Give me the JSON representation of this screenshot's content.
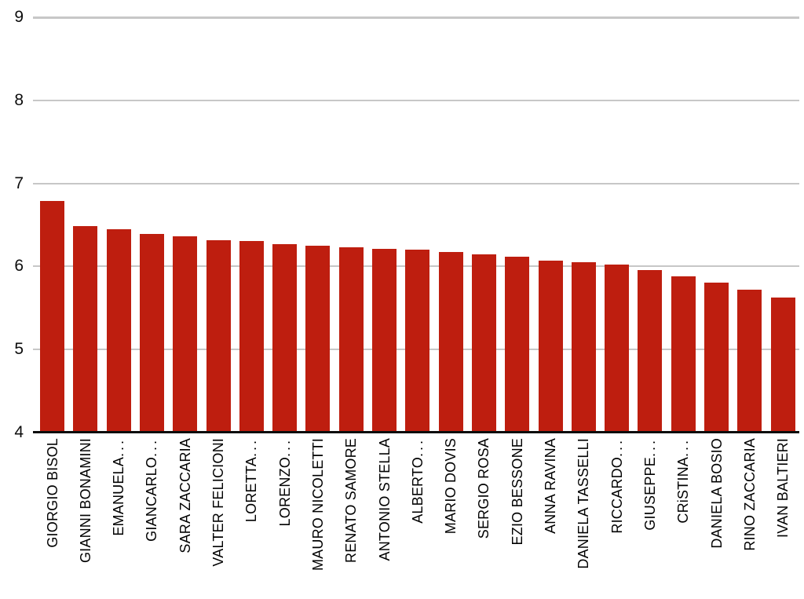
{
  "chart_data": {
    "type": "bar",
    "title": "",
    "xlabel": "",
    "ylabel": "",
    "categories": [
      "GIORGIO BISOL",
      "GIANNI BONAMINI",
      "EMANUELA...",
      "GIANCARLO...",
      "SARA ZACCARIA",
      "VALTER FELICIONI",
      "LORETTA...",
      "LORENZO...",
      "MAURO NICOLETTI",
      "RENATO SAMORE",
      "ANTONIO STELLA",
      "ALBERTO...",
      "MARIO DOVIS",
      "SERGIO ROSA",
      "EZIO BESSONE",
      "ANNA RAVINA",
      "DANIELA TASSELLI",
      "RICCARDO...",
      "GIUSEPPE...",
      "CRiSTINA...",
      "DANIELA BOSIO",
      "RINO ZACCARIA",
      "IVAN BALTIERI"
    ],
    "values": [
      6.79,
      6.49,
      6.45,
      6.39,
      6.36,
      6.32,
      6.31,
      6.27,
      6.25,
      6.23,
      6.21,
      6.2,
      6.17,
      6.15,
      6.12,
      6.07,
      6.05,
      6.02,
      5.96,
      5.88,
      5.81,
      5.72,
      5.63
    ],
    "ylim": [
      4,
      9
    ],
    "yticks": [
      4,
      5,
      6,
      7,
      8,
      9
    ],
    "grid": true,
    "legend": false
  },
  "colors": {
    "bar": "#be1e0f",
    "gridline": "#c7c7c7",
    "axis_line": "#0d0d0d",
    "background": "#ffffff",
    "label_text": "#000000"
  }
}
